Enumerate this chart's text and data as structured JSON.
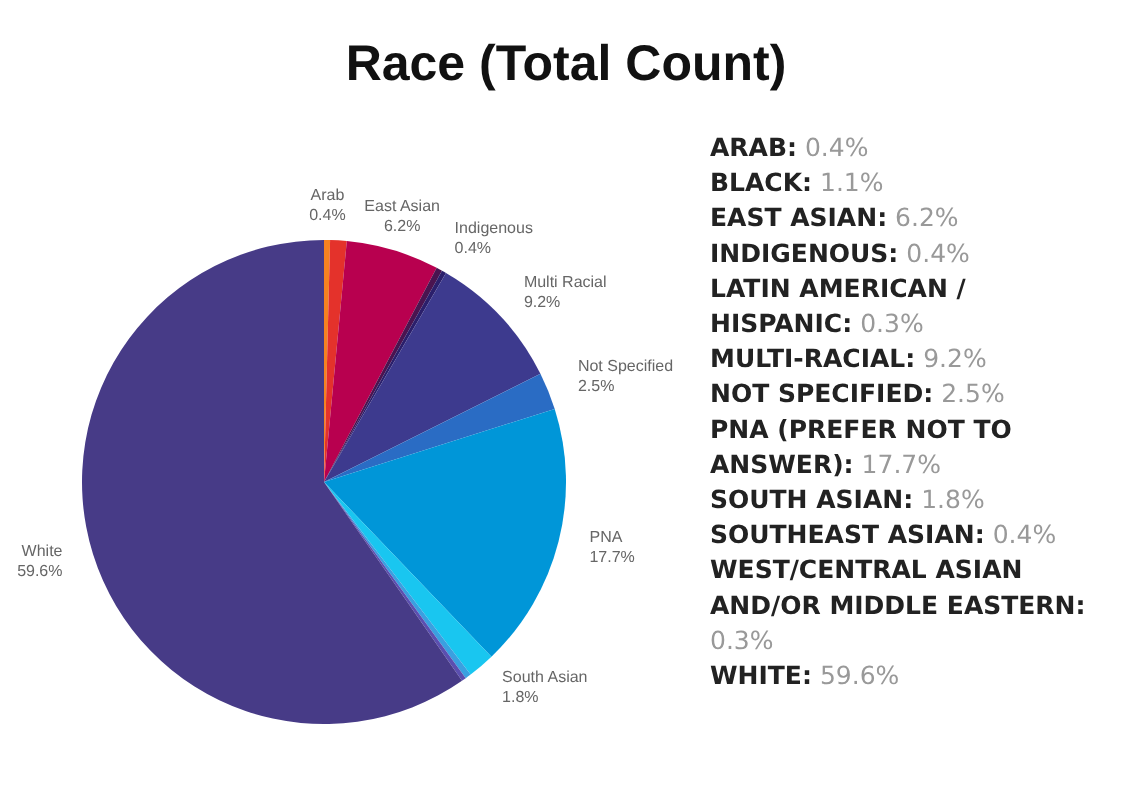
{
  "chart_data": {
    "type": "pie",
    "title": "Race (Total Count)",
    "categories": [
      "Arab",
      null,
      "East Asian",
      "Indigenous",
      null,
      "Multi Racial",
      "Not Specified",
      "PNA",
      "South Asian",
      null,
      null,
      "White"
    ],
    "values": [
      0.4,
      1.1,
      6.2,
      0.4,
      0.3,
      9.2,
      2.5,
      17.7,
      1.8,
      0.4,
      0.3,
      59.6
    ],
    "value_labels": [
      "0.4%",
      null,
      "6.2%",
      "0.4%",
      null,
      "9.2%",
      "2.5%",
      "17.7%",
      "1.8%",
      null,
      null,
      "59.6%"
    ],
    "colors": [
      "#f58220",
      "#e4322b",
      "#b8004f",
      "#4a1450",
      "#2b1f6b",
      "#3d3a8e",
      "#2a6cc4",
      "#0096d8",
      "#19c6f0",
      "#3aa0e0",
      "#5b4fb0",
      "#473b87"
    ],
    "annotations": [
      "ARAB: 0.4%",
      "BLACK: 1.1%",
      "EAST ASIAN: 6.2%",
      "INDIGENOUS: 0.4%",
      "LATIN AMERICAN / HISPANIC: 0.3%",
      "MULTI-RACIAL: 9.2%",
      "NOT SPECIFIED: 2.5%",
      "PNA (PREFER NOT TO ANSWER): 17.7%",
      "SOUTH ASIAN: 1.8%",
      "SOUTHEAST ASIAN: 0.4%",
      "WEST/CENTRAL ASIAN AND/OR MIDDLE EASTERN: 0.3%",
      "WHITE: 59.6%"
    ]
  }
}
